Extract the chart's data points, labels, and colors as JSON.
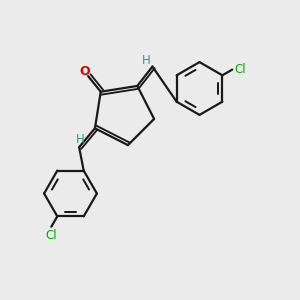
{
  "background_color": "#ebebeb",
  "bond_color": "#1a1a1a",
  "atom_colors": {
    "O": "#dd0000",
    "Cl": "#00aa00",
    "H": "#2a9d8f",
    "C": "#1a1a1a"
  },
  "figsize": [
    3.0,
    3.0
  ],
  "dpi": 100
}
